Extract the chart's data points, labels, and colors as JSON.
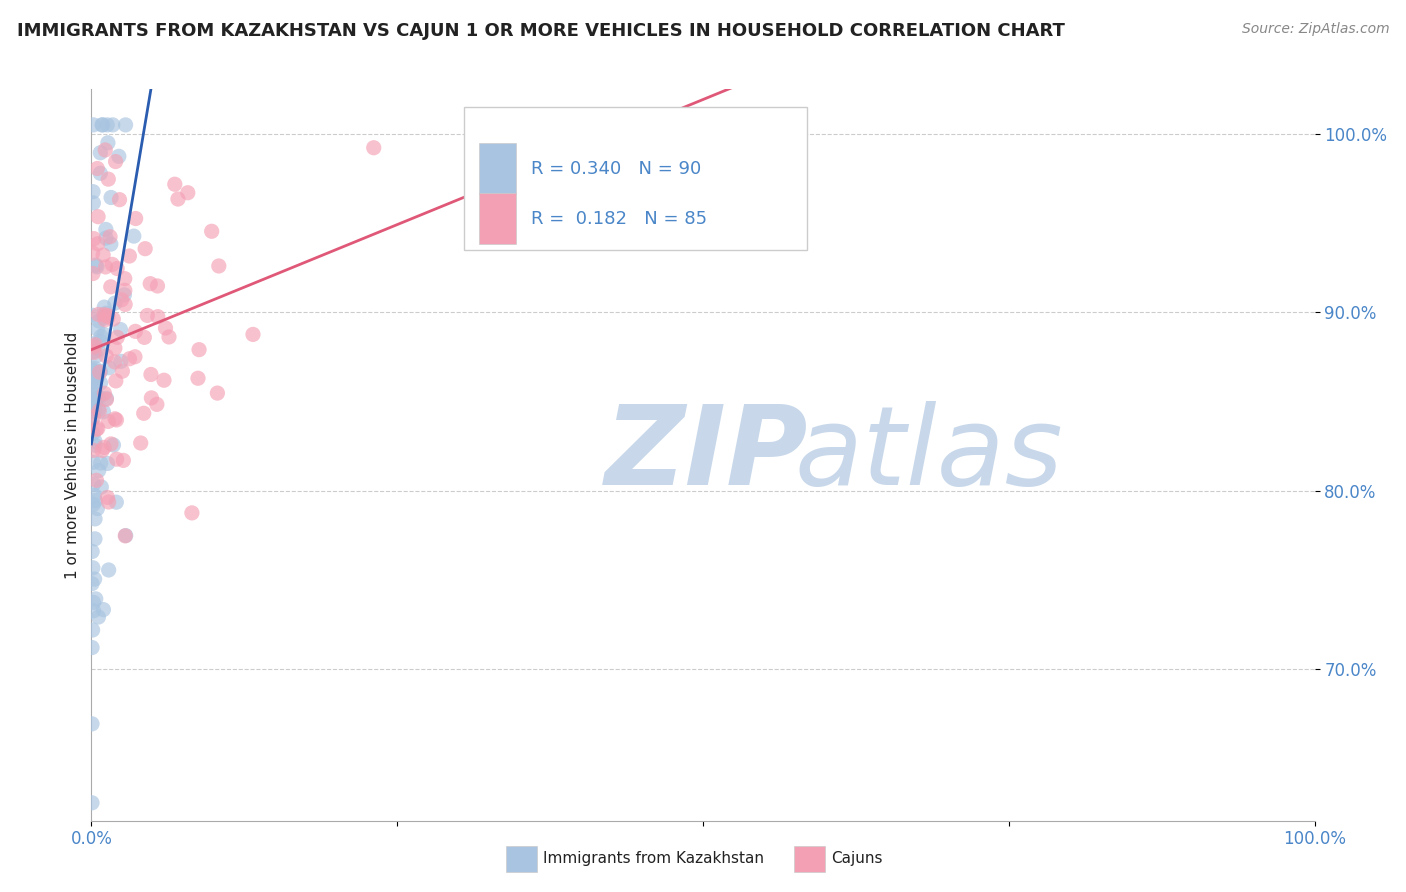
{
  "title": "IMMIGRANTS FROM KAZAKHSTAN VS CAJUN 1 OR MORE VEHICLES IN HOUSEHOLD CORRELATION CHART",
  "source": "Source: ZipAtlas.com",
  "ylabel": "1 or more Vehicles in Household",
  "legend_label1": "Immigrants from Kazakhstan",
  "legend_label2": "Cajuns",
  "R1": 0.34,
  "N1": 90,
  "R2": 0.182,
  "N2": 85,
  "color1": "#a8c4e0",
  "color2": "#f4a0b4",
  "line_color1": "#2a5cb0",
  "line_color2": "#e05878",
  "watermark_zip_color": "#c8d8ea",
  "watermark_atlas_color": "#c8d8ea",
  "xmin": 0.0,
  "xmax": 1.0,
  "ymin": 0.615,
  "ymax": 1.025,
  "yticks": [
    0.7,
    0.8,
    0.9,
    1.0
  ],
  "ytick_labels": [
    "70.0%",
    "80.0%",
    "90.0%",
    "100.0%"
  ],
  "title_fontsize": 13,
  "tick_fontsize": 12,
  "tick_color": "#4a86c8",
  "source_color": "#888888",
  "text_color": "#222222",
  "grid_color": "#cccccc",
  "spine_color": "#aaaaaa",
  "legend_edge_color": "#cccccc",
  "scatter_size": 120,
  "scatter_alpha": 0.65,
  "line_width": 2.0
}
